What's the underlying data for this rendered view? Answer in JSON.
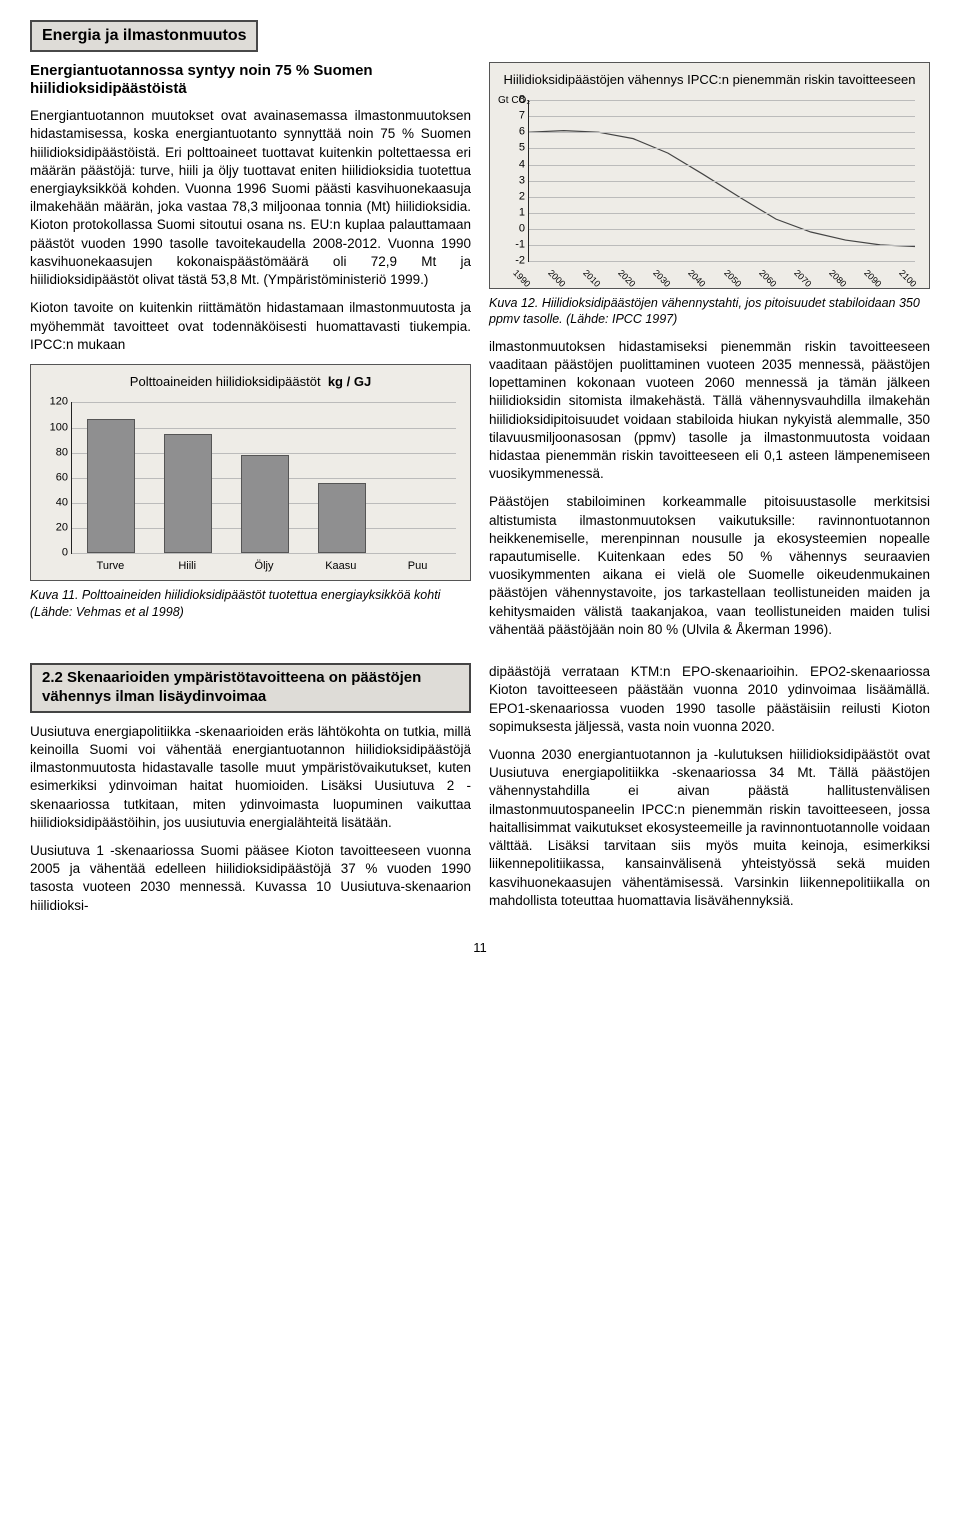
{
  "pageTitle": "Energia ja ilmastonmuutos",
  "intro": {
    "subhead": "Energiantuotannossa syntyy noin 75 % Suomen hiilidioksidipäästöistä",
    "p1": "Energiantuotannon muutokset ovat avainasemassa ilmastonmuutoksen hidastamisessa, koska energiantuotanto synnyttää noin 75 % Suomen hiilidioksidipäästöistä. Eri polttoaineet tuottavat kuitenkin poltettaessa eri määrän päästöjä: turve, hiili ja öljy tuottavat eniten hiilidioksidia tuotettua energiayksikköä kohden. Vuonna 1996 Suomi päästi kasvihuonekaasuja ilmakehään määrän, joka vastaa 78,3 miljoonaa tonnia (Mt) hiilidioksidia. Kioton protokollassa Suomi sitoutui osana ns. EU:n kuplaa palauttamaan päästöt vuoden 1990 tasolle tavoitekaudella 2008-2012. Vuonna 1990 kasvihuonekaasujen kokonaispäästömäärä oli 72,9 Mt ja hiilidioksidipäästöt olivat tästä 53,8 Mt. (Ympäristöministeriö 1999.)",
    "p2": "Kioton tavoite on kuitenkin riittämätön hidastamaan ilmastonmuutosta ja myöhemmät tavoitteet ovat todennäköisesti huomattavasti tiukempia. IPCC:n mukaan"
  },
  "chartBar": {
    "type": "bar",
    "title_prefix": "Polttoaineiden hiilidioksidipäästöt",
    "unit": "kg / GJ",
    "categories": [
      "Turve",
      "Hiili",
      "Öljy",
      "Kaasu",
      "Puu"
    ],
    "values": [
      107,
      95,
      78,
      56,
      0
    ],
    "y_max": 120,
    "y_step": 20,
    "bar_color": "#8f8f90",
    "background": "#eeece7",
    "grid_color": "#bbbbbb",
    "label_fontsize": 11
  },
  "captionBar": "Kuva 11. Polttoaineiden hiilidioksidipäästöt tuotettua energiayksikköä kohti (Lähde: Vehmas et al 1998)",
  "chartLine": {
    "type": "line",
    "title": "Hiilidioksidipäästöjen vähennys IPCC:n pienemmän riskin tavoitteeseen",
    "y_label": "Gt CO₂",
    "y_ticks": [
      -2,
      -1,
      0,
      1,
      2,
      3,
      4,
      5,
      6,
      7,
      8
    ],
    "y_min": -2,
    "y_max": 8,
    "x_ticks": [
      "1990",
      "2000",
      "2010",
      "2020",
      "2030",
      "2040",
      "2050",
      "2060",
      "2070",
      "2080",
      "2090",
      "2100"
    ],
    "curve": [
      {
        "x": 0.0,
        "y": 6.0
      },
      {
        "x": 0.09,
        "y": 6.1
      },
      {
        "x": 0.18,
        "y": 6.0
      },
      {
        "x": 0.27,
        "y": 5.6
      },
      {
        "x": 0.36,
        "y": 4.7
      },
      {
        "x": 0.45,
        "y": 3.4
      },
      {
        "x": 0.55,
        "y": 1.9
      },
      {
        "x": 0.64,
        "y": 0.6
      },
      {
        "x": 0.73,
        "y": -0.2
      },
      {
        "x": 0.82,
        "y": -0.7
      },
      {
        "x": 0.91,
        "y": -1.0
      },
      {
        "x": 1.0,
        "y": -1.1
      }
    ],
    "line_color": "#444444",
    "background": "#eeece7",
    "grid_color": "#bbbbbb"
  },
  "captionLine": "Kuva 12. Hiilidioksidipäästöjen vähennystahti, jos pitoisuudet stabiloidaan 350 ppmv tasolle. (Lähde: IPCC 1997)",
  "rightCol": {
    "p1": "ilmastonmuutoksen hidastamiseksi pienemmän riskin tavoitteeseen vaaditaan päästöjen puolittaminen vuoteen 2035 mennessä, päästöjen lopettaminen kokonaan vuoteen 2060 mennessä ja tämän jälkeen hiilidioksidin sitomista ilmakehästä. Tällä vähennysvauhdilla ilmakehän hiilidioksidipitoisuudet voidaan stabiloida hiukan nykyistä alemmalle, 350 tilavuusmiljoonasosan (ppmv) tasolle ja ilmastonmuutosta voidaan hidastaa pienemmän riskin tavoitteeseen eli 0,1 asteen lämpenemiseen vuosikymmenessä.",
    "p2": "Päästöjen stabiloiminen korkeammalle pitoisuustasolle merkitsisi altistumista ilmastonmuutoksen vaikutuksille: ravinnon­tuotannon heikkenemiselle, merenpinnan nousulle ja ekosysteemien nopealle rapautumiselle. Kuitenkaan edes 50 % vähennys seuraavien vuosikymmenten aikana ei vielä ole Suomelle oikeudenmukainen päästöjen vähennystavoite, jos tarkastellaan teollistuneiden maiden ja kehitysmaiden välistä taakanjakoa, vaan teollistuneiden maiden tulisi vähentää päästöjään noin 80 % (Ulvila & Åkerman 1996)."
  },
  "section2": {
    "title": "2.2 Skenaarioiden ympäristötavoitteena on päästöjen vähennys ilman lisäydinvoimaa",
    "left_p1": "Uusiutuva energiapolitiikka -skenaarioiden eräs lähtökohta on tutkia, millä keinoilla Suomi voi vähentää energiantuotannon hiilidioksidipäästöjä ilmastonmuutosta hidastavalle tasolle muut ympäristövaikutukset, kuten esimerkiksi ydinvoiman haitat huomioiden. Lisäksi Uusiutuva 2 -skenaariossa tutkitaan, miten ydinvoimasta luopuminen vaikuttaa hiilidioksidipäästöihin, jos uusiutuvia energialähteitä lisätään.",
    "left_p2": "Uusiutuva 1 -skenaariossa Suomi pääsee Kioton tavoitteeseen vuonna 2005 ja vähentää edelleen hiilidioksidipäästöjä 37 % vuoden 1990 tasosta vuoteen 2030 mennessä. Kuvassa 10 Uusiutuva-skenaarion hiilidioksi-",
    "right_p1": "dipäästöjä verrataan KTM:n EPO-skenaarioihin. EPO2-skenaariossa Kioton tavoitteeseen päästään vuonna 2010 ydinvoimaa lisäämällä. EPO1-skenaariossa vuoden 1990 tasolle päästäisiin reilusti Kioton sopimuksesta jäljessä, vasta noin vuonna 2020.",
    "right_p2": "Vuonna 2030 energiantuotannon ja -kulutuksen hiilidioksidipäästöt ovat Uusiutuva energiapolitiikka -skenaariossa 34 Mt. Tällä päästöjen vähennystahdilla ei aivan päästä hallitustenvälisen ilmastonmuutospaneelin IPCC:n pienemmän riskin tavoitteeseen, jossa haitallisimmat vaikutukset ekosysteemeille ja ravinnontuotannolle voidaan välttää. Lisäksi tarvitaan siis myös muita keinoja, esimerkiksi liikennepolitiikassa, kansainvälisenä yhteistyössä sekä muiden kasvihuonekaasujen vähentämisessä. Varsinkin liikennepolitiikalla on mahdollista toteuttaa huomattavia lisävähennyksiä."
  },
  "pageNumber": "11"
}
